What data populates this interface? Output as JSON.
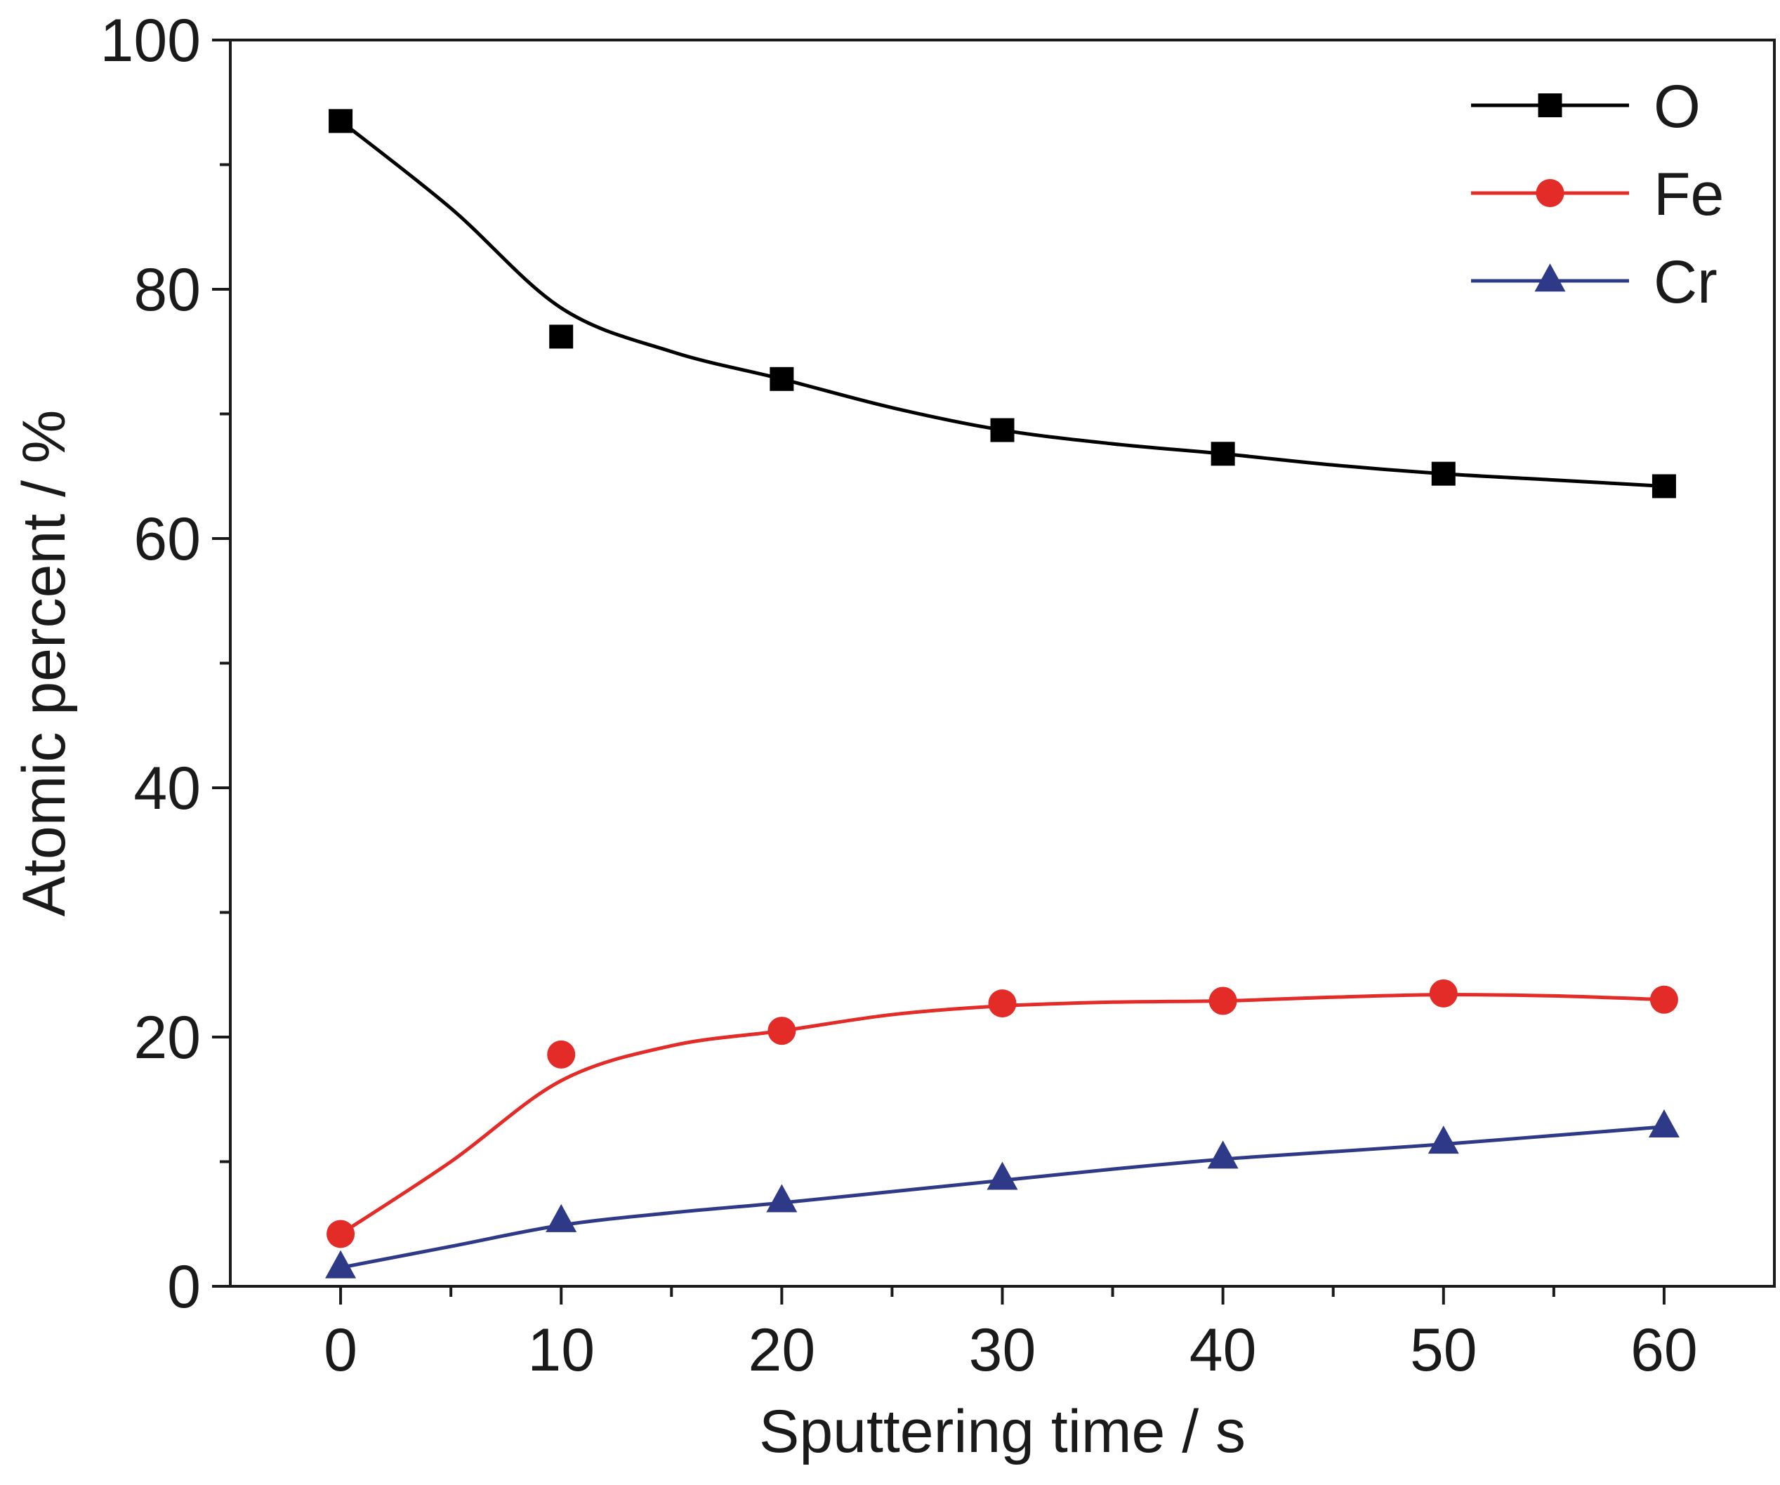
{
  "chart_data": {
    "type": "line",
    "xlabel": "Sputtering time / s",
    "ylabel": "Atomic percent / %",
    "xlim": [
      -5,
      65
    ],
    "ylim": [
      0,
      100
    ],
    "x_ticks": [
      0,
      10,
      20,
      30,
      40,
      50,
      60
    ],
    "y_ticks": [
      0,
      20,
      40,
      60,
      80,
      100
    ],
    "x_minor_ticks": [
      5,
      15,
      25,
      35,
      45,
      55
    ],
    "y_minor_ticks": [
      10,
      30,
      50,
      70,
      90
    ],
    "grid": false,
    "legend_position": "top-right",
    "series": [
      {
        "name": "O",
        "marker": "square",
        "color": "#000000",
        "x": [
          0,
          10,
          20,
          30,
          40,
          50,
          60
        ],
        "y": [
          93.5,
          76.2,
          72.8,
          68.7,
          66.8,
          65.2,
          64.2
        ],
        "fit": [
          93.5,
          86.5,
          78.5,
          75.0,
          72.8,
          70.5,
          68.7,
          67.6,
          66.8,
          65.9,
          65.2,
          64.7,
          64.2
        ]
      },
      {
        "name": "Fe",
        "marker": "circle",
        "color": "#e32b27",
        "x": [
          0,
          10,
          20,
          30,
          40,
          50,
          60
        ],
        "y": [
          4.2,
          18.6,
          20.5,
          22.7,
          22.9,
          23.5,
          23.0
        ],
        "fit": [
          4.2,
          10.0,
          16.5,
          19.3,
          20.5,
          21.8,
          22.5,
          22.8,
          22.9,
          23.2,
          23.4,
          23.3,
          23.0
        ]
      },
      {
        "name": "Cr",
        "marker": "triangle",
        "color": "#2e3a87",
        "x": [
          0,
          10,
          20,
          30,
          40,
          50,
          60
        ],
        "y": [
          1.5,
          5.2,
          6.8,
          8.6,
          10.3,
          11.5,
          12.8
        ],
        "fit": [
          1.5,
          3.2,
          4.9,
          5.9,
          6.7,
          7.6,
          8.5,
          9.4,
          10.2,
          10.8,
          11.4,
          12.1,
          12.8
        ]
      }
    ]
  }
}
